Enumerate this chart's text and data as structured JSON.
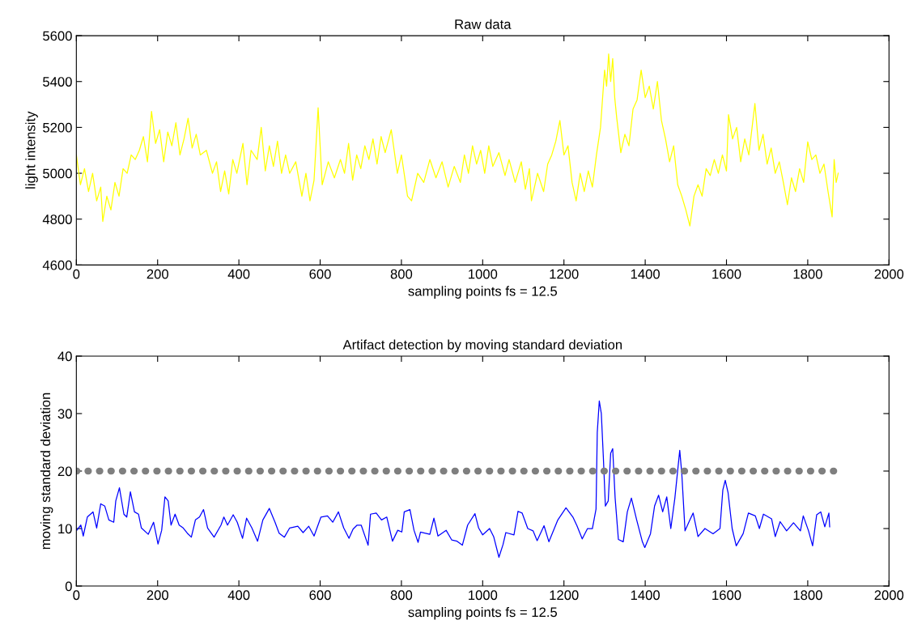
{
  "chart_data": [
    {
      "type": "line",
      "title": "Raw data",
      "xlabel": "sampling points fs = 12.5",
      "ylabel": "light intensity",
      "xlim": [
        0,
        2000
      ],
      "xticks": [
        0,
        200,
        400,
        600,
        800,
        1000,
        1200,
        1400,
        1600,
        1800,
        2000
      ],
      "ylim": [
        4600,
        5600
      ],
      "yticks": [
        4600,
        4800,
        5000,
        5200,
        5400,
        5600
      ],
      "series": [
        {
          "color": "#ffff00",
          "x": [
            0,
            10,
            20,
            30,
            40,
            50,
            60,
            65,
            75,
            85,
            95,
            105,
            115,
            125,
            135,
            145,
            155,
            165,
            175,
            185,
            195,
            205,
            215,
            225,
            235,
            245,
            255,
            265,
            275,
            285,
            295,
            305,
            320,
            335,
            345,
            355,
            365,
            375,
            385,
            395,
            410,
            420,
            430,
            445,
            455,
            465,
            475,
            485,
            495,
            505,
            515,
            525,
            540,
            555,
            565,
            575,
            585,
            595,
            605,
            620,
            635,
            650,
            660,
            670,
            680,
            690,
            700,
            710,
            720,
            730,
            740,
            750,
            760,
            775,
            790,
            800,
            815,
            825,
            840,
            855,
            870,
            885,
            900,
            915,
            930,
            945,
            955,
            965,
            975,
            985,
            995,
            1005,
            1015,
            1025,
            1040,
            1055,
            1065,
            1080,
            1095,
            1105,
            1115,
            1120,
            1135,
            1150,
            1160,
            1170,
            1180,
            1190,
            1200,
            1210,
            1220,
            1230,
            1240,
            1250,
            1260,
            1270,
            1280,
            1290,
            1300,
            1305,
            1310,
            1315,
            1320,
            1325,
            1330,
            1340,
            1350,
            1360,
            1370,
            1380,
            1390,
            1400,
            1410,
            1420,
            1430,
            1440,
            1450,
            1460,
            1470,
            1480,
            1490,
            1500,
            1510,
            1520,
            1530,
            1540,
            1550,
            1560,
            1570,
            1580,
            1590,
            1600,
            1605,
            1615,
            1625,
            1635,
            1645,
            1655,
            1670,
            1680,
            1690,
            1700,
            1710,
            1720,
            1730,
            1740,
            1750,
            1760,
            1770,
            1780,
            1790,
            1800,
            1810,
            1820,
            1830,
            1840,
            1850,
            1860,
            1865,
            1870,
            1875
          ],
          "values": [
            5080,
            4950,
            5020,
            4920,
            5000,
            4880,
            4940,
            4790,
            4900,
            4840,
            4960,
            4900,
            5020,
            5000,
            5080,
            5060,
            5100,
            5160,
            5050,
            5270,
            5130,
            5190,
            5050,
            5180,
            5120,
            5220,
            5080,
            5150,
            5240,
            5110,
            5170,
            5080,
            5100,
            5000,
            5050,
            4920,
            5010,
            4910,
            5060,
            5000,
            5130,
            4950,
            5100,
            5060,
            5200,
            5010,
            5120,
            5030,
            5140,
            5000,
            5080,
            5000,
            5050,
            4900,
            5000,
            4880,
            4970,
            5286,
            4950,
            5050,
            4980,
            5060,
            5000,
            5130,
            4970,
            5080,
            5020,
            5120,
            5060,
            5150,
            5040,
            5160,
            5090,
            5190,
            5000,
            5080,
            4900,
            4880,
            5000,
            4960,
            5060,
            4980,
            5050,
            4940,
            5030,
            4960,
            5080,
            5000,
            5120,
            5040,
            5100,
            5000,
            5120,
            5030,
            5090,
            4990,
            5060,
            4960,
            5050,
            4930,
            5020,
            4880,
            5000,
            4920,
            5040,
            5080,
            5140,
            5230,
            5080,
            5120,
            4960,
            4880,
            5000,
            4920,
            5010,
            4940,
            5080,
            5200,
            5450,
            5380,
            5520,
            5400,
            5500,
            5330,
            5240,
            5090,
            5170,
            5120,
            5280,
            5320,
            5450,
            5330,
            5380,
            5280,
            5400,
            5230,
            5150,
            5050,
            5120,
            4950,
            4900,
            4840,
            4770,
            4900,
            4950,
            4900,
            5020,
            4990,
            5060,
            5000,
            5080,
            5010,
            5256,
            5150,
            5200,
            5050,
            5150,
            5080,
            5304,
            5100,
            5170,
            5040,
            5110,
            5000,
            5050,
            4960,
            4863,
            4980,
            4920,
            5020,
            4960,
            5137,
            5060,
            5080,
            5000,
            5040,
            4920,
            4810,
            5060,
            4960,
            5000
          ]
        }
      ]
    },
    {
      "type": "line",
      "title": "Artifact detection by moving standard deviation",
      "xlabel": "sampling points fs = 12.5",
      "ylabel": "moving standard deviation",
      "xlim": [
        0,
        2000
      ],
      "xticks": [
        0,
        200,
        400,
        600,
        800,
        1000,
        1200,
        1400,
        1600,
        1800,
        2000
      ],
      "ylim": [
        0,
        40
      ],
      "yticks": [
        0,
        10,
        20,
        30,
        40
      ],
      "series": [
        {
          "color": "#0000ff",
          "x": [
            1,
            11,
            17,
            27,
            41,
            50,
            60,
            70,
            80,
            92,
            97,
            106,
            117,
            124,
            133,
            143,
            153,
            160,
            177,
            190,
            201,
            210,
            218,
            226,
            233,
            243,
            253,
            263,
            273,
            283,
            293,
            303,
            313,
            323,
            339,
            356,
            363,
            372,
            386,
            396,
            409,
            419,
            432,
            446,
            459,
            475,
            489,
            499,
            512,
            525,
            545,
            558,
            572,
            585,
            602,
            618,
            631,
            645,
            658,
            671,
            681,
            691,
            701,
            718,
            724,
            738,
            751,
            764,
            778,
            791,
            801,
            807,
            821,
            831,
            841,
            847,
            870,
            880,
            890,
            910,
            924,
            937,
            950,
            963,
            981,
            990,
            1000,
            1017,
            1027,
            1040,
            1050,
            1057,
            1077,
            1087,
            1097,
            1111,
            1124,
            1134,
            1151,
            1163,
            1185,
            1205,
            1222,
            1232,
            1245,
            1258,
            1270,
            1279,
            1282,
            1287,
            1292,
            1297,
            1302,
            1309,
            1315,
            1320,
            1326,
            1334,
            1346,
            1356,
            1366,
            1379,
            1393,
            1399,
            1413,
            1423,
            1433,
            1443,
            1453,
            1463,
            1473,
            1485,
            1490,
            1498,
            1510,
            1518,
            1530,
            1547,
            1567,
            1584,
            1591,
            1597,
            1604,
            1614,
            1624,
            1641,
            1654,
            1671,
            1681,
            1691,
            1711,
            1720,
            1732,
            1748,
            1765,
            1782,
            1789,
            1802,
            1812,
            1822,
            1832,
            1842,
            1852,
            1854
          ],
          "values": [
            9.7,
            10.6,
            8.7,
            12.0,
            12.9,
            10.1,
            14.3,
            13.9,
            11.5,
            11.1,
            14.8,
            17.1,
            12.5,
            12.0,
            16.4,
            12.9,
            12.5,
            10.1,
            9.0,
            11.1,
            7.3,
            9.7,
            15.5,
            14.8,
            10.6,
            12.5,
            10.6,
            10.1,
            9.2,
            8.5,
            11.5,
            12.0,
            13.3,
            10.1,
            8.5,
            10.6,
            12.0,
            10.6,
            12.4,
            11.1,
            8.3,
            11.8,
            10.1,
            7.8,
            11.5,
            13.5,
            11.1,
            9.2,
            8.5,
            10.1,
            10.4,
            9.3,
            10.4,
            8.7,
            12.0,
            12.2,
            11.1,
            12.9,
            10.1,
            8.3,
            9.9,
            10.6,
            10.6,
            7.1,
            12.5,
            12.7,
            11.5,
            12.0,
            7.8,
            9.7,
            9.4,
            12.9,
            13.3,
            9.7,
            7.6,
            9.4,
            9.0,
            11.8,
            8.7,
            9.7,
            8.0,
            7.8,
            7.1,
            10.6,
            12.6,
            10.1,
            8.9,
            10.0,
            8.6,
            5.0,
            7.2,
            9.3,
            8.9,
            13.0,
            12.7,
            10.0,
            9.6,
            7.9,
            10.5,
            7.7,
            11.5,
            13.6,
            12.0,
            10.5,
            8.2,
            10.0,
            10.0,
            13.4,
            26.7,
            32.2,
            30.0,
            22.4,
            13.9,
            14.8,
            23.1,
            23.9,
            15.3,
            8.1,
            7.7,
            12.9,
            15.3,
            11.5,
            7.7,
            6.7,
            9.1,
            13.9,
            15.8,
            12.9,
            15.5,
            10.0,
            15.3,
            23.6,
            19.6,
            9.6,
            11.5,
            12.7,
            8.6,
            10.0,
            9.1,
            10.0,
            16.7,
            18.4,
            16.2,
            10.0,
            7.0,
            9.1,
            12.7,
            12.2,
            10.0,
            12.5,
            11.7,
            8.6,
            11.2,
            9.6,
            11.0,
            9.6,
            12.2,
            9.6,
            7.0,
            12.4,
            12.9,
            10.3,
            12.7,
            10.3
          ]
        },
        {
          "color": "#7f7f7f",
          "line_style": "dotted",
          "x": [
            0,
            1875
          ],
          "values": [
            20,
            20
          ]
        }
      ]
    }
  ]
}
